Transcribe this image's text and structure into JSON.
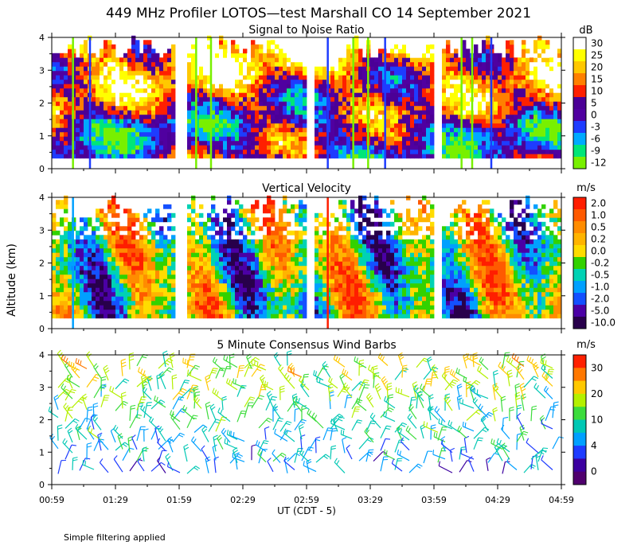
{
  "title": "449 MHz Profiler LOTOS—test Marshall CO 14 September 2021",
  "ylabel": "Altitude (km)",
  "xlabel": "UT  (CDT - 5)",
  "footnote": "Simple filtering applied",
  "chart_data": [
    {
      "type": "heatmap",
      "title": "Signal to Noise Ratio",
      "units": "dB",
      "ylim": [
        0,
        4
      ],
      "yticks": [
        "0",
        "1",
        "2",
        "3",
        "4"
      ],
      "xticks": [
        "00:59",
        "01:29",
        "01:59",
        "02:29",
        "02:59",
        "03:29",
        "03:59",
        "04:29",
        "04:59"
      ],
      "colorbar": {
        "labels": [
          "30",
          "25",
          "20",
          "15",
          "10",
          "5",
          "0",
          "-3",
          "-6",
          "-9",
          "-12"
        ],
        "colors": [
          "#ffffff",
          "#ffff00",
          "#ffc800",
          "#ff8000",
          "#ff2000",
          "#4b0096",
          "#5000a0",
          "#1e3cff",
          "#00aaff",
          "#00e678",
          "#78f000"
        ]
      },
      "data_gaps_ut": [
        [
          "01:58",
          "02:02"
        ],
        [
          "02:59",
          "03:03"
        ],
        [
          "03:59",
          "04:03"
        ]
      ],
      "vertical_streaks_ut": [
        "01:09",
        "01:17",
        "02:07",
        "02:14",
        "03:09",
        "03:21",
        "03:28",
        "03:36",
        "04:12",
        "04:17",
        "04:26"
      ]
    },
    {
      "type": "heatmap",
      "title": "Vertical Velocity",
      "units": "m/s",
      "ylim": [
        0,
        4
      ],
      "yticks": [
        "0",
        "1",
        "2",
        "3",
        "4"
      ],
      "xticks": [
        "00:59",
        "01:29",
        "01:59",
        "02:29",
        "02:59",
        "03:29",
        "03:59",
        "04:29",
        "04:59"
      ],
      "colorbar": {
        "labels": [
          "2.0",
          "1.0",
          "0.5",
          "0.2",
          "0.0",
          "-0.2",
          "-0.5",
          "-1.0",
          "-2.0",
          "-5.0",
          "-10.0"
        ],
        "colors": [
          "#ff1e00",
          "#ff5a00",
          "#ff8c00",
          "#ffb400",
          "#ffdc00",
          "#32d200",
          "#00d2b4",
          "#00a0ff",
          "#1450ff",
          "#4b00a5",
          "#28004b"
        ]
      },
      "data_gaps_ut": [
        [
          "01:58",
          "02:02"
        ],
        [
          "02:59",
          "03:03"
        ],
        [
          "03:59",
          "04:03"
        ]
      ],
      "vertical_streaks_ut": [
        "01:09",
        "03:09"
      ]
    },
    {
      "type": "wind_barbs",
      "title": "5 Minute Consensus Wind Barbs",
      "units": "m/s",
      "ylim": [
        0,
        4
      ],
      "yticks": [
        "0",
        "1",
        "2",
        "3",
        "4"
      ],
      "xticks": [
        "00:59",
        "01:29",
        "01:59",
        "02:29",
        "02:59",
        "03:29",
        "03:59",
        "04:29",
        "04:59"
      ],
      "colorbar": {
        "labels": [
          "30",
          "20",
          "10",
          "4",
          "0"
        ],
        "colors": [
          "#ff2000",
          "#ff7800",
          "#ffc800",
          "#b4f000",
          "#3cdc3c",
          "#00c8b4",
          "#00a0ff",
          "#1e3cff",
          "#3c00a0",
          "#50006e"
        ]
      }
    }
  ],
  "colors": {
    "axis": "#000000",
    "background": "#ffffff"
  }
}
